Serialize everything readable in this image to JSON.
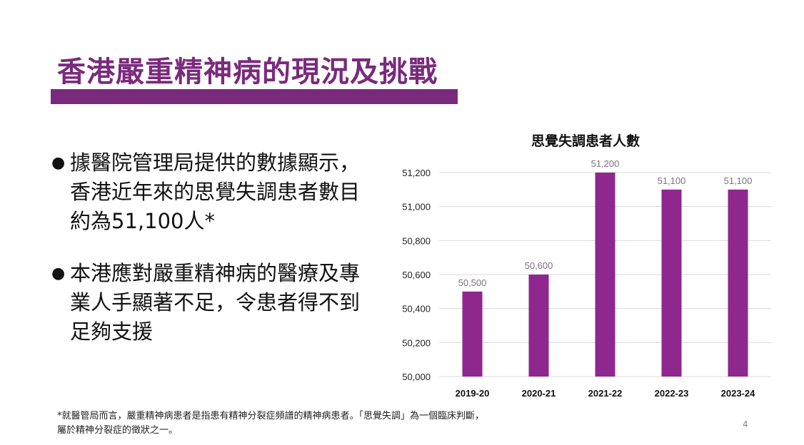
{
  "slide": {
    "title": "香港嚴重精神病的現況及挑戰",
    "bullets": [
      {
        "icon": "bullet-dot-icon",
        "text": "據醫院管理局提供的數據顯示，香港近年來的思覺失調患者數目約為51,100人*"
      },
      {
        "icon": "bullet-dot-icon",
        "text": "本港應對嚴重精神病的醫療及專業人手顯著不足，令患者得不到足夠支援"
      }
    ],
    "footnote_lines": [
      "*就醫管局而言，嚴重精神病患者是指患有精神分裂症頻譜的精神病患者。「思覺失調」為一個臨床判斷，",
      "屬於精神分裂症的徵狀之一。"
    ],
    "page_number": "4",
    "colors": {
      "accent": "#7a2a7c",
      "bar": "#8e278e",
      "data_label": "#7f6f86"
    }
  },
  "chart_data": {
    "type": "bar",
    "title": "思覺失調患者人數",
    "categories": [
      "2019-20",
      "2020-21",
      "2021-22",
      "2022-23",
      "2023-24"
    ],
    "values": [
      50500,
      50600,
      51200,
      51100,
      51100
    ],
    "data_labels": [
      "50,500",
      "50,600",
      "51,200",
      "51,100",
      "51,100"
    ],
    "ylim": [
      50000,
      51200
    ],
    "yticks": [
      50000,
      50200,
      50400,
      50600,
      50800,
      51000,
      51200
    ],
    "ytick_labels": [
      "50,000",
      "50,200",
      "50,400",
      "50,600",
      "50,800",
      "51,000",
      "51,200"
    ],
    "xlabel": "",
    "ylabel": "",
    "grid": true,
    "legend": "none"
  }
}
